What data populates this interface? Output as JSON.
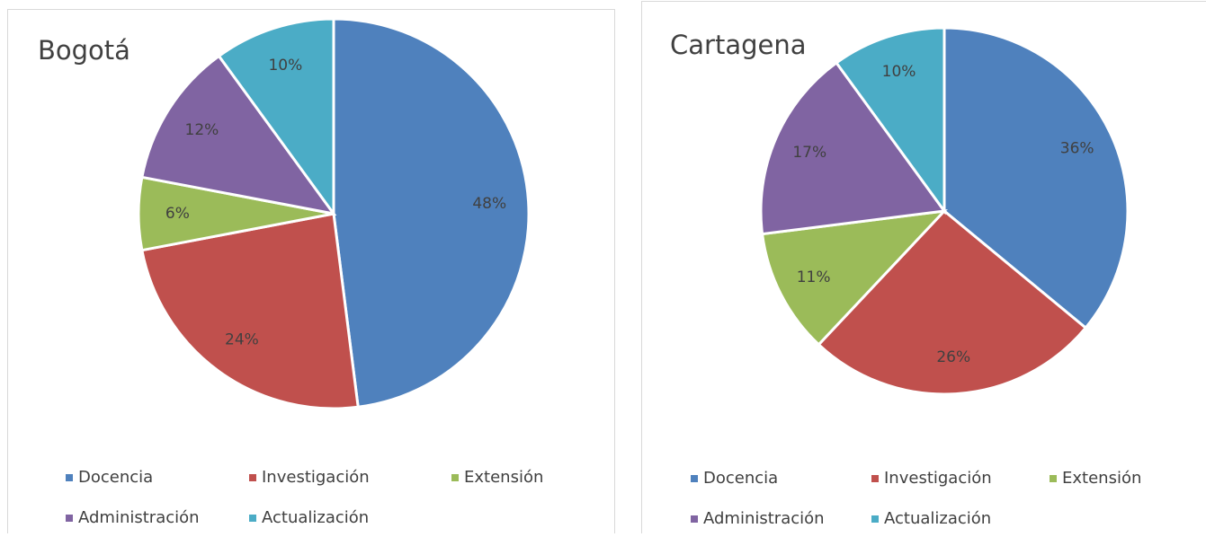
{
  "chart_data": [
    {
      "type": "pie",
      "title": "Bogotá",
      "categories": [
        "Docencia",
        "Investigación",
        "Extensión",
        "Administración",
        "Actualización"
      ],
      "values": [
        48,
        24,
        6,
        12,
        10
      ],
      "value_labels": [
        "48%",
        "24%",
        "6%",
        "12%",
        "10%"
      ],
      "colors": [
        "#4f81bd",
        "#c0504d",
        "#9bbb59",
        "#8064a2",
        "#4bacc6"
      ],
      "legend": "bottom"
    },
    {
      "type": "pie",
      "title": "Cartagena",
      "categories": [
        "Docencia",
        "Investigación",
        "Extensión",
        "Administración",
        "Actualización"
      ],
      "values": [
        36,
        26,
        11,
        17,
        10
      ],
      "value_labels": [
        "36%",
        "26%",
        "11%",
        "17%",
        "10%"
      ],
      "colors": [
        "#4f81bd",
        "#c0504d",
        "#9bbb59",
        "#8064a2",
        "#4bacc6"
      ],
      "legend": "bottom"
    }
  ]
}
